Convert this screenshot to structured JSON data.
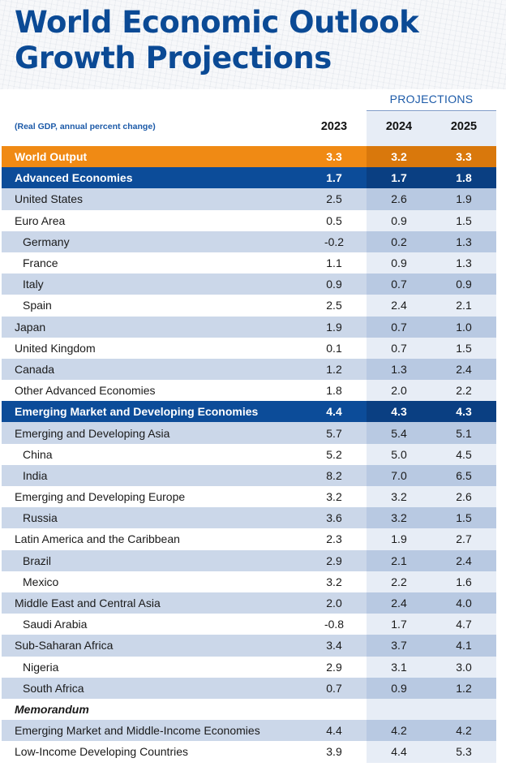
{
  "title_line1": "World Economic Outlook",
  "title_line2": "Growth Projections",
  "projections_label": "PROJECTIONS",
  "note": "(Real GDP, annual percent change)",
  "years": [
    "2023",
    "2024",
    "2025"
  ],
  "colors": {
    "title": "#0b4a95",
    "orange_row": "#f08a14",
    "blue_row": "#0c4c99",
    "tinted_row": "#cbd7e9",
    "projection_shade": "#e7edf6"
  },
  "rows": [
    {
      "label": "World Output",
      "values": [
        "3.3",
        "3.2",
        "3.3"
      ],
      "style": "orange"
    },
    {
      "label": "Advanced Economies",
      "values": [
        "1.7",
        "1.7",
        "1.8"
      ],
      "style": "blue"
    },
    {
      "label": "United States",
      "values": [
        "2.5",
        "2.6",
        "1.9"
      ],
      "style": "tinted"
    },
    {
      "label": "Euro Area",
      "values": [
        "0.5",
        "0.9",
        "1.5"
      ],
      "style": "plain"
    },
    {
      "label": "Germany",
      "values": [
        "-0.2",
        "0.2",
        "1.3"
      ],
      "style": "tinted",
      "sub": true
    },
    {
      "label": "France",
      "values": [
        "1.1",
        "0.9",
        "1.3"
      ],
      "style": "plain",
      "sub": true
    },
    {
      "label": "Italy",
      "values": [
        "0.9",
        "0.7",
        "0.9"
      ],
      "style": "tinted",
      "sub": true
    },
    {
      "label": "Spain",
      "values": [
        "2.5",
        "2.4",
        "2.1"
      ],
      "style": "plain",
      "sub": true
    },
    {
      "label": "Japan",
      "values": [
        "1.9",
        "0.7",
        "1.0"
      ],
      "style": "tinted"
    },
    {
      "label": "United Kingdom",
      "values": [
        "0.1",
        "0.7",
        "1.5"
      ],
      "style": "plain"
    },
    {
      "label": "Canada",
      "values": [
        "1.2",
        "1.3",
        "2.4"
      ],
      "style": "tinted"
    },
    {
      "label": "Other Advanced Economies",
      "values": [
        "1.8",
        "2.0",
        "2.2"
      ],
      "style": "plain"
    },
    {
      "label": "Emerging Market and Developing Economies",
      "values": [
        "4.4",
        "4.3",
        "4.3"
      ],
      "style": "blue"
    },
    {
      "label": "Emerging and Developing Asia",
      "values": [
        "5.7",
        "5.4",
        "5.1"
      ],
      "style": "tinted"
    },
    {
      "label": "China",
      "values": [
        "5.2",
        "5.0",
        "4.5"
      ],
      "style": "plain",
      "sub": true
    },
    {
      "label": "India",
      "values": [
        "8.2",
        "7.0",
        "6.5"
      ],
      "style": "tinted",
      "sub": true
    },
    {
      "label": "Emerging and Developing Europe",
      "values": [
        "3.2",
        "3.2",
        "2.6"
      ],
      "style": "plain"
    },
    {
      "label": "Russia",
      "values": [
        "3.6",
        "3.2",
        "1.5"
      ],
      "style": "tinted",
      "sub": true
    },
    {
      "label": "Latin America and the Caribbean",
      "values": [
        "2.3",
        "1.9",
        "2.7"
      ],
      "style": "plain"
    },
    {
      "label": "Brazil",
      "values": [
        "2.9",
        "2.1",
        "2.4"
      ],
      "style": "tinted",
      "sub": true
    },
    {
      "label": "Mexico",
      "values": [
        "3.2",
        "2.2",
        "1.6"
      ],
      "style": "plain",
      "sub": true
    },
    {
      "label": "Middle East and Central Asia",
      "values": [
        "2.0",
        "2.4",
        "4.0"
      ],
      "style": "tinted"
    },
    {
      "label": "Saudi Arabia",
      "values": [
        "-0.8",
        "1.7",
        "4.7"
      ],
      "style": "plain",
      "sub": true
    },
    {
      "label": "Sub-Saharan Africa",
      "values": [
        "3.4",
        "3.7",
        "4.1"
      ],
      "style": "tinted"
    },
    {
      "label": "Nigeria",
      "values": [
        "2.9",
        "3.1",
        "3.0"
      ],
      "style": "plain",
      "sub": true
    },
    {
      "label": "South Africa",
      "values": [
        "0.7",
        "0.9",
        "1.2"
      ],
      "style": "tinted",
      "sub": true
    },
    {
      "label": "Memorandum",
      "values": [
        "",
        "",
        ""
      ],
      "style": "plain",
      "memo": true
    },
    {
      "label": "Emerging Market and Middle-Income Economies",
      "values": [
        "4.4",
        "4.2",
        "4.2"
      ],
      "style": "tinted"
    },
    {
      "label": "Low-Income Developing Countries",
      "values": [
        "3.9",
        "4.4",
        "5.3"
      ],
      "style": "plain"
    }
  ]
}
